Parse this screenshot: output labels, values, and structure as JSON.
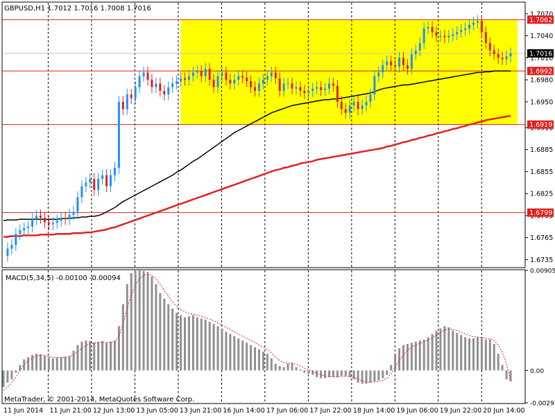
{
  "window": {
    "symbol_header": "GBPUSD,H1  1.7012 1.7016 1.7008 1.7016",
    "copyright": "MetaTrader, © 2001-2014, MetaQuotes Software Corp."
  },
  "colors": {
    "background": "#FFFFFF",
    "bull_candle": "#1E90FF",
    "bear_candle": "#E0201C",
    "zone_fill": "#FFFF00",
    "level_line": "#E02020",
    "ma_fast": "#000000",
    "ma_slow": "#E02020",
    "macd_hist": "#909090",
    "macd_signal": "#E02020",
    "price_tag": "#E02020",
    "current_tag": "#000000"
  },
  "chart_data": [
    {
      "type": "candlestick",
      "symbol": "GBPUSD",
      "timeframe": "H1",
      "ylim": [
        1.6725,
        1.7085
      ],
      "y_ticks": [
        "1.7070",
        "1.7040",
        "1.7010",
        "1.6980",
        "1.6950",
        "1.6915",
        "1.6885",
        "1.6855",
        "1.6825",
        "1.6795",
        "1.6765",
        "1.6735"
      ],
      "y_tick_values": [
        1.707,
        1.704,
        1.701,
        1.698,
        1.695,
        1.6915,
        1.6885,
        1.6855,
        1.6825,
        1.6795,
        1.6765,
        1.6735
      ],
      "x_labels": [
        "11 Jun 2014",
        "11 Jun 21:00",
        "12 Jun 13:00",
        "13 Jun 05:00",
        "13 Jun 21:00",
        "16 Jun 14:00",
        "17 Jun 06:00",
        "17 Jun 22:00",
        "18 Jun 14:00",
        "19 Jun 06:00",
        "19 Jun 22:00",
        "20 Jun 14:00"
      ],
      "current_price": "1.7016",
      "levels": [
        {
          "label": "1.7062",
          "value": 1.7062
        },
        {
          "label": "1.6992",
          "value": 1.6992
        },
        {
          "label": "1.6919",
          "value": 1.6919
        },
        {
          "label": "1.6799",
          "value": 1.6799
        }
      ],
      "zone": {
        "from_bar": 43,
        "to_bar": 123,
        "top": 1.7062,
        "bottom": 1.6919
      },
      "closes": [
        1.674,
        1.675,
        1.6755,
        1.677,
        1.6775,
        1.6778,
        1.678,
        1.679,
        1.6795,
        1.6792,
        1.6786,
        1.6783,
        1.6785,
        1.6788,
        1.6792,
        1.679,
        1.6796,
        1.68,
        1.682,
        1.6835,
        1.684,
        1.6845,
        1.683,
        1.6845,
        1.685,
        1.6835,
        1.685,
        1.686,
        1.695,
        1.694,
        1.696,
        1.6955,
        1.697,
        1.6985,
        1.699,
        1.698,
        1.697,
        1.6975,
        1.6965,
        1.696,
        1.697,
        1.6975,
        1.6978,
        1.6982,
        1.698,
        1.6985,
        1.699,
        1.6992,
        1.6985,
        1.6995,
        1.698,
        1.697,
        1.6985,
        1.699,
        1.698,
        1.6975,
        1.698,
        1.6985,
        1.6983,
        1.6978,
        1.697,
        1.6965,
        1.6975,
        1.698,
        1.6985,
        1.699,
        1.6982,
        1.6965,
        1.6975,
        1.6975,
        1.6968,
        1.697,
        1.6965,
        1.6962,
        1.6965,
        1.6968,
        1.697,
        1.6966,
        1.6968,
        1.6975,
        1.6972,
        1.695,
        1.694,
        1.6935,
        1.6945,
        1.695,
        1.694,
        1.6945,
        1.695,
        1.696,
        1.6985,
        1.699,
        1.7,
        1.7005,
        1.7,
        1.6998,
        1.701,
        1.7,
        1.6995,
        1.7015,
        1.702,
        1.703,
        1.705,
        1.7052,
        1.7045,
        1.704,
        1.704,
        1.7038,
        1.704,
        1.7042,
        1.7045,
        1.7048,
        1.705,
        1.7055,
        1.7058,
        1.706,
        1.7045,
        1.703,
        1.702,
        1.7015,
        1.701,
        1.7008,
        1.7012,
        1.7016
      ],
      "ma_fast": [
        1.6788,
        1.6789,
        1.6789,
        1.6789,
        1.679,
        1.679,
        1.679,
        1.679,
        1.679,
        1.679,
        1.679,
        1.679,
        1.679,
        1.679,
        1.6791,
        1.6791,
        1.6791,
        1.6792,
        1.6792,
        1.6793,
        1.6793,
        1.6794,
        1.6794,
        1.6795,
        1.6797,
        1.68,
        1.6803,
        1.6806,
        1.681,
        1.6814,
        1.6817,
        1.682,
        1.6823,
        1.6826,
        1.6829,
        1.6832,
        1.6835,
        1.6838,
        1.6841,
        1.6844,
        1.6847,
        1.685,
        1.6854,
        1.6857,
        1.6861,
        1.6865,
        1.6869,
        1.6872,
        1.6876,
        1.688,
        1.6884,
        1.6888,
        1.6892,
        1.6896,
        1.69,
        1.6904,
        1.6908,
        1.6911,
        1.6914,
        1.6917,
        1.692,
        1.6923,
        1.6926,
        1.6929,
        1.6932,
        1.6935,
        1.6937,
        1.6939,
        1.6941,
        1.6943,
        1.6945,
        1.6946,
        1.6947,
        1.6948,
        1.6949,
        1.695,
        1.6951,
        1.6952,
        1.6953,
        1.6953,
        1.6954,
        1.6954,
        1.6955,
        1.6956,
        1.6957,
        1.6958,
        1.6959,
        1.696,
        1.6961,
        1.6962,
        1.6964,
        1.6966,
        1.6968,
        1.6969,
        1.697,
        1.6971,
        1.6972,
        1.6973,
        1.6973,
        1.6974,
        1.6975,
        1.6976,
        1.6977,
        1.6978,
        1.6979,
        1.698,
        1.6981,
        1.6982,
        1.6983,
        1.6984,
        1.6985,
        1.6986,
        1.6987,
        1.6988,
        1.6989,
        1.699,
        1.699,
        1.6991,
        1.6991,
        1.6992,
        1.6992,
        1.6992,
        1.6992,
        1.6992
      ],
      "ma_slow": [
        1.6766,
        1.6766,
        1.6767,
        1.6767,
        1.6767,
        1.6768,
        1.6768,
        1.6768,
        1.6768,
        1.6769,
        1.6769,
        1.6769,
        1.6769,
        1.677,
        1.677,
        1.677,
        1.677,
        1.6771,
        1.6771,
        1.6771,
        1.6772,
        1.6772,
        1.6773,
        1.6774,
        1.6775,
        1.6776,
        1.6778,
        1.6779,
        1.6781,
        1.6783,
        1.6785,
        1.6787,
        1.6789,
        1.6791,
        1.6793,
        1.6795,
        1.6797,
        1.6799,
        1.6801,
        1.6803,
        1.6805,
        1.6807,
        1.6809,
        1.6811,
        1.6813,
        1.6815,
        1.6817,
        1.6819,
        1.6821,
        1.6823,
        1.6825,
        1.6827,
        1.6829,
        1.6831,
        1.6833,
        1.6835,
        1.6837,
        1.6839,
        1.6841,
        1.6843,
        1.6845,
        1.6847,
        1.6849,
        1.6851,
        1.6853,
        1.6855,
        1.6857,
        1.6858,
        1.686,
        1.6861,
        1.6863,
        1.6864,
        1.6866,
        1.6867,
        1.6868,
        1.6869,
        1.6871,
        1.6872,
        1.6873,
        1.6874,
        1.6875,
        1.6876,
        1.6877,
        1.6878,
        1.6879,
        1.688,
        1.6881,
        1.6882,
        1.6883,
        1.6884,
        1.6885,
        1.6886,
        1.6887,
        1.6889,
        1.689,
        1.6892,
        1.6893,
        1.6895,
        1.6896,
        1.6898,
        1.6899,
        1.6901,
        1.6902,
        1.6904,
        1.6905,
        1.6907,
        1.6908,
        1.691,
        1.6911,
        1.6913,
        1.6914,
        1.6916,
        1.6917,
        1.6919,
        1.692,
        1.6922,
        1.6923,
        1.6925,
        1.6926,
        1.6927,
        1.6928,
        1.6929,
        1.693,
        1.6931
      ]
    },
    {
      "type": "bar",
      "indicator_label": "MACD(5,34,5) -0.00100 -0.00094",
      "ylim": [
        -0.00293,
        0.00905
      ],
      "y_ticks": [
        "0.00905",
        "0.00",
        "-0.00293"
      ],
      "y_tick_values": [
        0.00905,
        0.0,
        -0.00293
      ],
      "histogram": [
        -0.0015,
        -0.0011,
        -0.0008,
        -0.0002,
        0.0005,
        0.001,
        0.0012,
        0.0014,
        0.0015,
        0.00145,
        0.0013,
        0.0012,
        0.0011,
        0.00115,
        0.0012,
        0.00125,
        0.0013,
        0.0018,
        0.0023,
        0.0026,
        0.0027,
        0.00265,
        0.00255,
        0.0026,
        0.00265,
        0.0025,
        0.0026,
        0.0027,
        0.004,
        0.006,
        0.0078,
        0.0088,
        0.009,
        0.00905,
        0.009,
        0.0089,
        0.0085,
        0.0078,
        0.007,
        0.0065,
        0.006,
        0.0056,
        0.0052,
        0.005,
        0.0048,
        0.0049,
        0.005,
        0.0048,
        0.0047,
        0.0046,
        0.0044,
        0.0042,
        0.004,
        0.0038,
        0.0035,
        0.0033,
        0.0031,
        0.0029,
        0.0027,
        0.0025,
        0.0023,
        0.0021,
        0.0019,
        0.0017,
        0.0015,
        0.0011,
        0.0006,
        0.0004,
        0.0003,
        0.0006,
        0.0007,
        0.0003,
        0.0001,
        -0.0002,
        -0.0003,
        -0.0004,
        -0.0006,
        -0.0007,
        -0.0007,
        -0.0006,
        -0.0006,
        -0.0006,
        -0.0005,
        -0.0005,
        -0.0006,
        -0.0008,
        -0.0011,
        -0.0012,
        -0.0012,
        -0.0011,
        -0.001,
        -0.0009,
        -0.0007,
        -0.0004,
        0.0005,
        0.0015,
        0.002,
        0.0023,
        0.0024,
        0.0025,
        0.0026,
        0.0027,
        0.0028,
        0.003,
        0.0033,
        0.0036,
        0.0038,
        0.004,
        0.0039,
        0.0036,
        0.0034,
        0.0032,
        0.003,
        0.0029,
        0.0029,
        0.003,
        0.0029,
        0.0028,
        0.0028,
        0.0024,
        0.0015,
        0.0005,
        -0.0008,
        -0.001
      ],
      "signal": [
        -0.0018,
        -0.0015,
        -0.0011,
        -0.0006,
        0.0,
        0.0005,
        0.0009,
        0.0011,
        0.0013,
        0.0014,
        0.00135,
        0.00125,
        0.0012,
        0.00118,
        0.00118,
        0.0012,
        0.00125,
        0.0014,
        0.0017,
        0.002,
        0.00225,
        0.0024,
        0.00245,
        0.0025,
        0.00255,
        0.00253,
        0.00255,
        0.0026,
        0.0031,
        0.0042,
        0.0056,
        0.0068,
        0.0077,
        0.0083,
        0.0086,
        0.0087,
        0.0086,
        0.0083,
        0.0078,
        0.0072,
        0.0067,
        0.0062,
        0.0058,
        0.0055,
        0.0053,
        0.00515,
        0.0051,
        0.005,
        0.0049,
        0.0048,
        0.00465,
        0.0045,
        0.0043,
        0.0041,
        0.0039,
        0.0037,
        0.0035,
        0.0033,
        0.0031,
        0.0029,
        0.0027,
        0.0025,
        0.0023,
        0.0021,
        0.0019,
        0.0016,
        0.0012,
        0.0009,
        0.0007,
        0.00065,
        0.00065,
        0.00055,
        0.0004,
        0.0002,
        5e-05,
        -0.0001,
        -0.00025,
        -0.0004,
        -0.0005,
        -0.00055,
        -0.00057,
        -0.00058,
        -0.00055,
        -0.00053,
        -0.00055,
        -0.00063,
        -0.0008,
        -0.00095,
        -0.00105,
        -0.00107,
        -0.00105,
        -0.001,
        -0.0009,
        -0.0007,
        -0.0003,
        0.0003,
        0.0009,
        0.0014,
        0.0018,
        0.0021,
        0.0023,
        0.00245,
        0.0026,
        0.00275,
        0.00295,
        0.0032,
        0.00345,
        0.00365,
        0.00375,
        0.0037,
        0.0036,
        0.00345,
        0.0033,
        0.00315,
        0.00305,
        0.00303,
        0.00298,
        0.00292,
        0.00288,
        0.0027,
        0.0023,
        0.0016,
        0.0006,
        -0.00094
      ]
    }
  ]
}
